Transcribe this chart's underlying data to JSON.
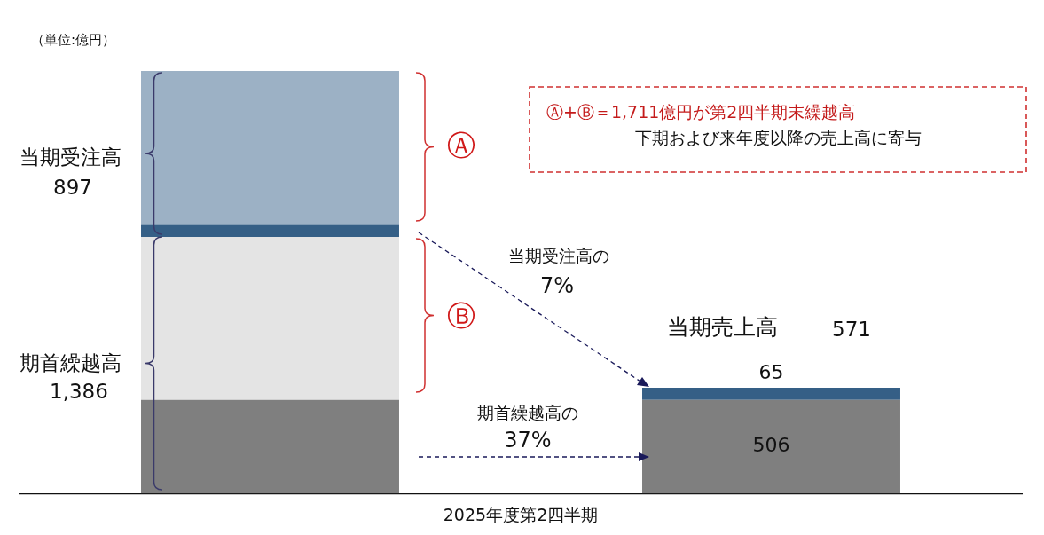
{
  "chart_data": {
    "type": "bar",
    "stacked": true,
    "xlabel": "2025年度第2四半期",
    "categories": [
      null,
      null
    ],
    "ylim": [
      0,
      2283
    ],
    "tick_labels": false,
    "series": [
      {
        "color": "#7f7f7f",
        "values": [
          506,
          506
        ],
        "value_labels": [
          null,
          "506"
        ]
      },
      {
        "color": "#e4e4e4",
        "values": [
          880,
          null
        ]
      },
      {
        "color": "#355f86",
        "values": [
          65,
          65
        ],
        "value_labels": [
          null,
          "65"
        ]
      },
      {
        "color": "#9cb1c5",
        "values": [
          832,
          null
        ]
      }
    ],
    "annotations": [
      "（単位:億円）",
      "当期受注高",
      "897",
      "期首繰越高",
      "1,386",
      "当期受注高の",
      "7%",
      "期首繰越高の",
      "37%",
      "当期売上高",
      "571",
      "Ⓐ+Ⓑ＝1,711億円が第2四半期末繰越高",
      "下期および来年度以降の売上高に寄与",
      "Ⓐ",
      "Ⓑ"
    ]
  }
}
